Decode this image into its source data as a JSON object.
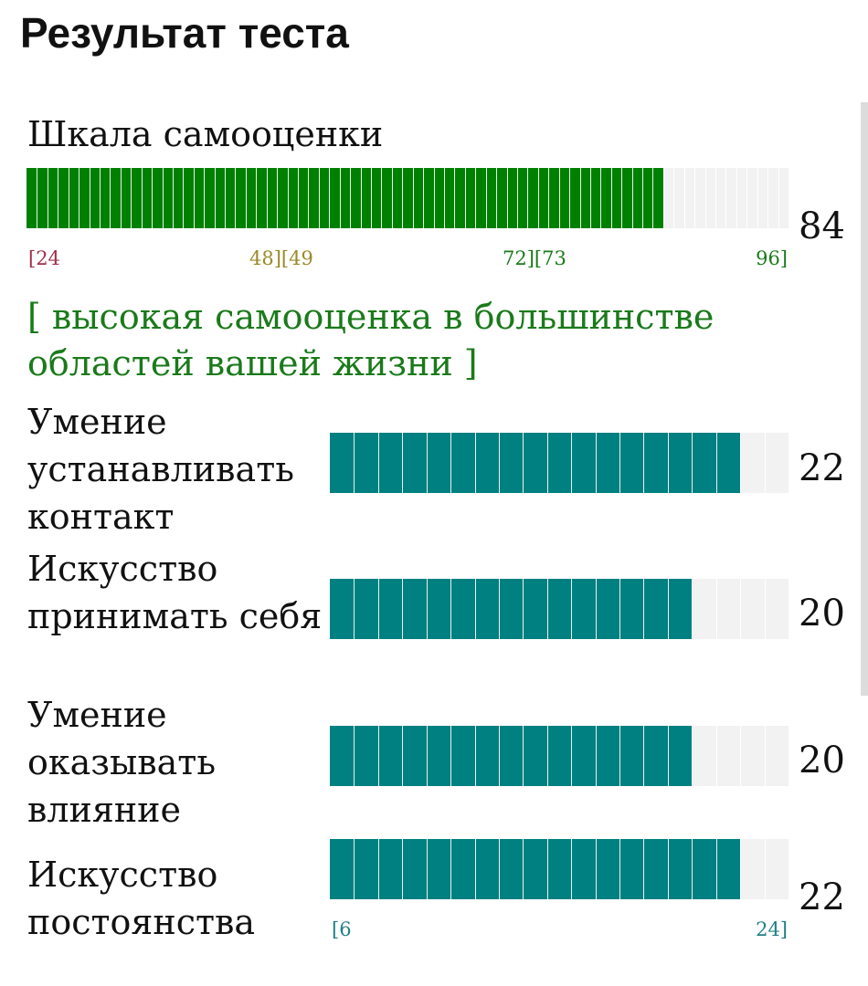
{
  "title": "Результат теста",
  "main_scale": {
    "label": "Шкала самооценки",
    "score": "84",
    "min": 24,
    "max": 96,
    "value": 84,
    "fill_color": "#008000",
    "ticks": [
      {
        "text": "[24",
        "color": "#a0304a"
      },
      {
        "text": "48][49",
        "color": "#9a8a28"
      },
      {
        "text": "72][73",
        "color": "#1a7a1a"
      },
      {
        "text": "96]",
        "color": "#1a7a1a"
      }
    ],
    "interpretation": "[ высокая самооценка в большинстве областей вашей жизни ]"
  },
  "subscales": [
    {
      "label": "Умение устанавливать контакт",
      "score": "22",
      "value": 22
    },
    {
      "label": "Искусство принимать себя",
      "score": "20",
      "value": 20
    },
    {
      "label": "Умение оказывать влияние",
      "score": "20",
      "value": 20
    },
    {
      "label": "Искусство постоянства",
      "score": "22",
      "value": 22
    }
  ],
  "sub_range": {
    "min": 6,
    "max": 24,
    "min_label": "[6",
    "max_label": "24]",
    "color": "#1f7f86",
    "fill_color": "#008080"
  }
}
